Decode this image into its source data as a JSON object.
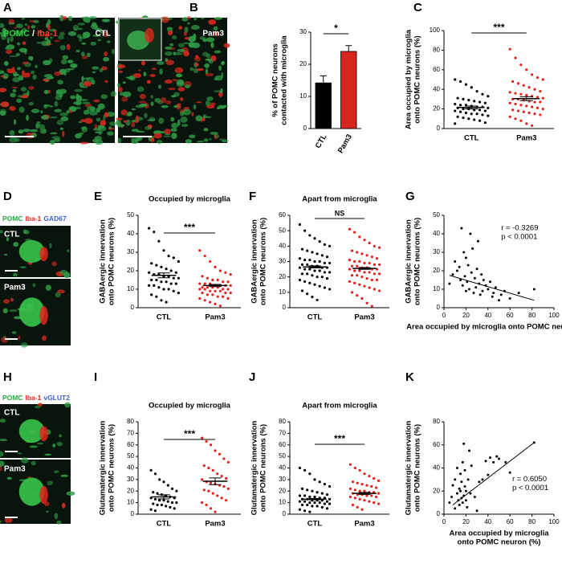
{
  "images": [
    {
      "panel": "A",
      "stain": [
        "POMC",
        "/",
        "Iba-1"
      ],
      "stain_colors": [
        "#2ecc40",
        "#ffffff",
        "#ff3b30"
      ],
      "conditions": [
        "CTL",
        "Pam3"
      ]
    },
    {
      "panel": "D",
      "stain": [
        "POMC",
        "Iba-1",
        "GAD67"
      ],
      "stain_colors": [
        "#1fae3a",
        "#e0261e",
        "#3a5fd0"
      ],
      "conditions": [
        "CTL",
        "Pam3"
      ]
    },
    {
      "panel": "H",
      "stain": [
        "POMC",
        "Iba-1",
        "vGLUT2"
      ],
      "stain_colors": [
        "#1fae3a",
        "#e0261e",
        "#3a5fd0"
      ],
      "conditions": [
        "CTL",
        "Pam3"
      ]
    }
  ],
  "chart_data": [
    {
      "type": "bar",
      "panel": "B",
      "ylabel": [
        "% of POMC neurons",
        "contacted with microglia"
      ],
      "categories": [
        "CTL",
        "Pam3"
      ],
      "values": [
        14.2,
        24.0
      ],
      "errors": [
        2.2,
        1.8
      ],
      "colors": [
        "#000000",
        "#d7261e"
      ],
      "ylim": [
        0,
        30
      ],
      "yticks": [
        0,
        10,
        20,
        30
      ],
      "significance": "*"
    },
    {
      "type": "dot",
      "panel": "C",
      "ylabel": [
        "Area occupied by microglia",
        "onto POMC neurons (%)"
      ],
      "categories": [
        "CTL",
        "Pam3"
      ],
      "colors": [
        "#000000",
        "#e8201c"
      ],
      "points": [
        [
          50,
          48,
          45,
          42,
          38,
          35,
          33,
          31,
          30,
          29,
          28,
          27,
          26,
          25,
          24,
          24,
          23,
          22,
          22,
          21,
          21,
          20,
          20,
          19,
          19,
          18,
          18,
          17,
          16,
          15,
          15,
          14,
          13,
          12,
          11,
          10,
          9,
          8,
          6,
          5
        ],
        [
          81,
          72,
          65,
          60,
          55,
          52,
          50,
          48,
          46,
          44,
          42,
          40,
          38,
          37,
          36,
          35,
          34,
          33,
          32,
          31,
          30,
          30,
          29,
          28,
          27,
          27,
          26,
          25,
          24,
          23,
          22,
          21,
          20,
          19,
          18,
          17,
          16,
          15,
          14,
          12,
          10,
          8,
          5,
          3
        ]
      ],
      "mean": [
        21.5,
        30.5
      ],
      "sem": [
        1.5,
        2.0
      ],
      "ylim": [
        0,
        100
      ],
      "yticks": [
        0,
        20,
        40,
        60,
        80,
        100
      ],
      "significance": "***"
    },
    {
      "type": "dot",
      "panel": "E",
      "title": "Occupied by microglia",
      "ylabel": [
        "GABAergic innervation",
        "onto POMC neurons (%)"
      ],
      "categories": [
        "CTL",
        "Pam3"
      ],
      "colors": [
        "#000000",
        "#e8201c"
      ],
      "points": [
        [
          43,
          41,
          36,
          31,
          28,
          27,
          25,
          24,
          23,
          22,
          21,
          20,
          19,
          19,
          18,
          18,
          17,
          17,
          16,
          16,
          15,
          15,
          14,
          14,
          13,
          13,
          12,
          12,
          11,
          10,
          10,
          9,
          8,
          7,
          6,
          4,
          3
        ],
        [
          31,
          28,
          25,
          22,
          20,
          19,
          18,
          17,
          16,
          15,
          15,
          14,
          14,
          13,
          13,
          13,
          12,
          12,
          12,
          12,
          11,
          11,
          11,
          11,
          10,
          10,
          10,
          10,
          9,
          9,
          9,
          8,
          8,
          8,
          7,
          7,
          6,
          6,
          5,
          5,
          4,
          3,
          2,
          1
        ]
      ],
      "mean": [
        17.5,
        12.0
      ],
      "sem": [
        1.3,
        0.6
      ],
      "ylim": [
        0,
        50
      ],
      "yticks": [
        0,
        10,
        20,
        30,
        40,
        50
      ],
      "significance": "***"
    },
    {
      "type": "dot",
      "panel": "F",
      "title": "Apart from microglia",
      "ylabel": [
        "GABAergic innervation",
        "onto POMC neurons (%)"
      ],
      "categories": [
        "CTL",
        "Pam3"
      ],
      "colors": [
        "#000000",
        "#e8201c"
      ],
      "points": [
        [
          54,
          50,
          47,
          45,
          43,
          41,
          40,
          38,
          37,
          36,
          35,
          34,
          33,
          32,
          31,
          31,
          30,
          30,
          29,
          29,
          28,
          28,
          27,
          27,
          26,
          26,
          26,
          25,
          25,
          24,
          24,
          23,
          23,
          22,
          22,
          21,
          20,
          20,
          19,
          18,
          17,
          16,
          15,
          14,
          13,
          12,
          11,
          9,
          7,
          5
        ],
        [
          51,
          49,
          46,
          44,
          42,
          40,
          39,
          37,
          36,
          35,
          34,
          33,
          32,
          31,
          30,
          30,
          29,
          29,
          28,
          28,
          27,
          27,
          26,
          26,
          25,
          25,
          25,
          24,
          24,
          23,
          23,
          22,
          22,
          21,
          21,
          20,
          19,
          18,
          18,
          17,
          16,
          15,
          14,
          13,
          12,
          11,
          10,
          8,
          6,
          3,
          1
        ]
      ],
      "mean": [
        26.5,
        25.5
      ],
      "sem": [
        0.7,
        0.6
      ],
      "ylim": [
        0,
        60
      ],
      "yticks": [
        0,
        10,
        20,
        30,
        40,
        50,
        60
      ],
      "significance": "NS"
    },
    {
      "type": "scatter",
      "panel": "G",
      "ylabel": [
        "GABAergic innervation",
        "onto POMC neurons (%)"
      ],
      "xlabel": [
        "Area occupied by microglia onto POMC neuron (%)"
      ],
      "color": "#000000",
      "x": [
        5,
        8,
        10,
        12,
        14,
        15,
        16,
        17,
        18,
        19,
        20,
        20,
        21,
        22,
        23,
        24,
        25,
        26,
        27,
        28,
        29,
        30,
        31,
        32,
        33,
        34,
        35,
        36,
        38,
        40,
        42,
        44,
        45,
        47,
        50,
        52,
        55,
        60,
        68,
        82
      ],
      "y": [
        13,
        18,
        25,
        20,
        22,
        15,
        43,
        12,
        30,
        17,
        9,
        27,
        14,
        23,
        10,
        40,
        19,
        32,
        8,
        16,
        11,
        21,
        36,
        13,
        7,
        18,
        9,
        15,
        12,
        10,
        14,
        6,
        8,
        11,
        4,
        7,
        9,
        5,
        8,
        10
      ],
      "fit": {
        "x": [
          5,
          82
        ],
        "y": [
          17.5,
          4
        ]
      },
      "annotations": [
        "r = -0.3269",
        "p < 0.0001"
      ],
      "xlim": [
        0,
        100
      ],
      "xticks": [
        0,
        20,
        40,
        60,
        80,
        100
      ],
      "ylim": [
        0,
        50
      ],
      "yticks": [
        0,
        10,
        20,
        30,
        40,
        50
      ]
    },
    {
      "type": "dot",
      "panel": "I",
      "title": "Occupied by microglia",
      "ylabel": [
        "Glutamatergic innervation",
        "onto POMC neurons (%)"
      ],
      "categories": [
        "CTL",
        "Pam3"
      ],
      "colors": [
        "#000000",
        "#e8201c"
      ],
      "points": [
        [
          38,
          35,
          30,
          28,
          25,
          22,
          20,
          19,
          18,
          17,
          16,
          15,
          14,
          14,
          13,
          12,
          12,
          11,
          10,
          10,
          9,
          8,
          8,
          7,
          6,
          5,
          4,
          3
        ],
        [
          66,
          63,
          60,
          55,
          52,
          48,
          45,
          42,
          40,
          38,
          35,
          33,
          31,
          30,
          28,
          27,
          26,
          25,
          24,
          22,
          21,
          20,
          18,
          16,
          14,
          12,
          10,
          8,
          5,
          2
        ]
      ],
      "mean": [
        15.0,
        28.5
      ],
      "sem": [
        1.8,
        2.9
      ],
      "ylim": [
        0,
        80
      ],
      "yticks": [
        0,
        10,
        20,
        30,
        40,
        50,
        60,
        70,
        80
      ],
      "significance": "***"
    },
    {
      "type": "dot",
      "panel": "J",
      "title": "Apart from microglia",
      "ylabel": [
        "Glutamatergic innervation",
        "onto POMC neurons (%)"
      ],
      "categories": [
        "CTL",
        "Pam3"
      ],
      "colors": [
        "#000000",
        "#e8201c"
      ],
      "points": [
        [
          40,
          38,
          35,
          30,
          28,
          26,
          24,
          22,
          21,
          20,
          19,
          18,
          17,
          16,
          16,
          15,
          15,
          14,
          14,
          13,
          13,
          13,
          12,
          12,
          12,
          11,
          11,
          11,
          10,
          10,
          10,
          9,
          9,
          8,
          8,
          7,
          7,
          6,
          5,
          4,
          3,
          2
        ],
        [
          43,
          40,
          38,
          35,
          33,
          31,
          29,
          28,
          27,
          26,
          25,
          24,
          23,
          22,
          21,
          20,
          20,
          19,
          19,
          18,
          18,
          17,
          17,
          16,
          16,
          15,
          15,
          14,
          13,
          12,
          11,
          10,
          9,
          8,
          6,
          4
        ]
      ],
      "mean": [
        13.0,
        18.0
      ],
      "sem": [
        0.6,
        0.9
      ],
      "ylim": [
        0,
        80
      ],
      "yticks": [
        0,
        10,
        20,
        30,
        40,
        50,
        60,
        70,
        80
      ],
      "significance": "***"
    },
    {
      "type": "scatter",
      "panel": "K",
      "ylabel": [
        "Glutamatergic innervation",
        "onto POMC neurons (%)"
      ],
      "xlabel": [
        "Area occupied by microglia",
        "onto POMC neuron (%)"
      ],
      "color": "#000000",
      "x": [
        5,
        7,
        8,
        10,
        10,
        12,
        12,
        13,
        14,
        14,
        15,
        15,
        16,
        16,
        17,
        17,
        18,
        18,
        19,
        19,
        20,
        20,
        21,
        22,
        23,
        24,
        25,
        28,
        30,
        32,
        35,
        38,
        40,
        42,
        45,
        48,
        50,
        56,
        60,
        82
      ],
      "y": [
        10,
        15,
        25,
        5,
        30,
        18,
        40,
        12,
        22,
        8,
        35,
        20,
        14,
        28,
        45,
        10,
        16,
        61,
        24,
        38,
        12,
        20,
        6,
        30,
        55,
        18,
        42,
        15,
        3,
        28,
        30,
        46,
        34,
        49,
        45,
        50,
        48,
        45,
        36,
        62
      ],
      "fit": {
        "x": [
          8,
          82
        ],
        "y": [
          8,
          62
        ]
      },
      "annotations": [
        "r = 0.6050",
        "p < 0.0001"
      ],
      "xlim": [
        0,
        100
      ],
      "xticks": [
        0,
        20,
        40,
        60,
        80,
        100
      ],
      "ylim": [
        0,
        80
      ],
      "yticks": [
        0,
        20,
        40,
        60,
        80
      ]
    }
  ]
}
